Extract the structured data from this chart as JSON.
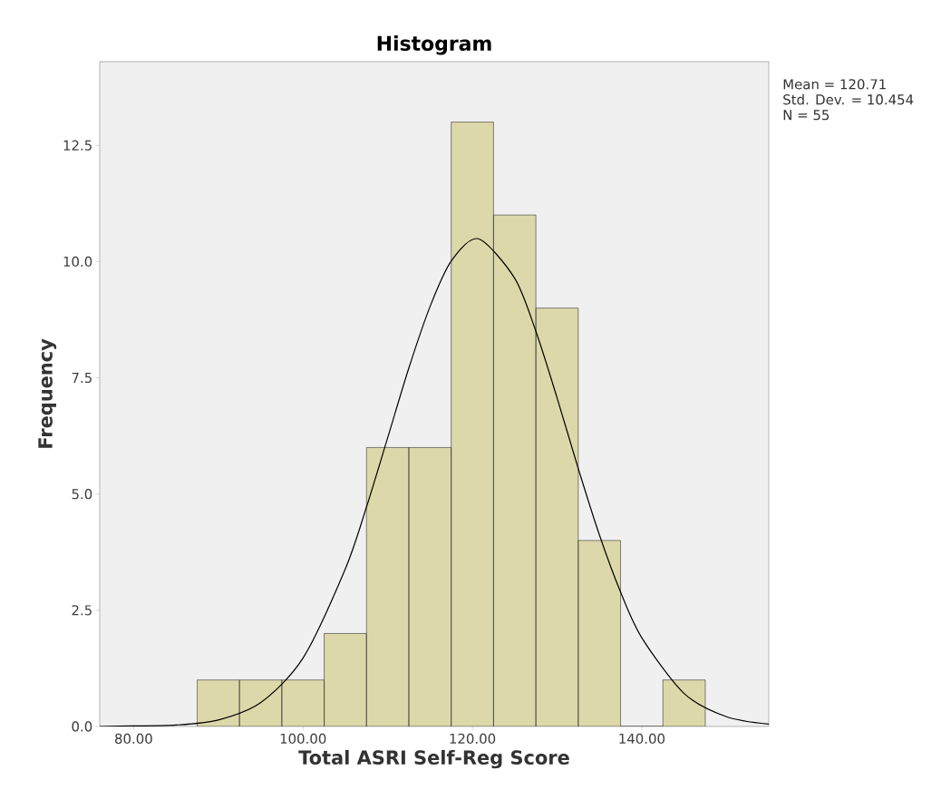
{
  "chart_data": {
    "type": "histogram",
    "title": "Histogram",
    "xlabel": "Total ASRI Self-Reg Score",
    "ylabel": "Frequency",
    "bins": [
      87.5,
      92.5,
      97.5,
      102.5,
      107.5,
      112.5,
      117.5,
      122.5,
      127.5,
      132.5,
      137.5,
      142.5,
      147.5
    ],
    "values": [
      1,
      1,
      1,
      2,
      6,
      6,
      13,
      11,
      9,
      4,
      0,
      1
    ],
    "color": "#ddd8a9",
    "series": [
      {
        "type": "line",
        "color": "#000000",
        "x": [
          76,
          80,
          85,
          90,
          95,
          100,
          105,
          107.5,
          110,
          112.5,
          115,
          117.5,
          120.7,
          125,
          127.5,
          130,
          132.5,
          135,
          137.5,
          140,
          145,
          150,
          155
        ],
        "values": [
          0,
          0.01,
          0.03,
          0.14,
          0.51,
          1.47,
          3.39,
          4.72,
          6.21,
          7.71,
          9.03,
          10.01,
          10.49,
          9.64,
          8.5,
          7.07,
          5.55,
          4.12,
          2.89,
          1.91,
          0.71,
          0.21,
          0.05
        ]
      }
    ],
    "xlim": [
      76,
      155
    ],
    "ylim": [
      0,
      14.3
    ],
    "xticks": [
      {
        "value": 80,
        "label": "80.00"
      },
      {
        "value": 100,
        "label": "100.00"
      },
      {
        "value": 120,
        "label": "120.00"
      },
      {
        "value": 140,
        "label": "140.00"
      }
    ],
    "yticks": [
      {
        "value": 0,
        "label": "0.0"
      },
      {
        "value": 2.5,
        "label": "2.5"
      },
      {
        "value": 5,
        "label": "5.0"
      },
      {
        "value": 7.5,
        "label": "7.5"
      },
      {
        "value": 10,
        "label": "10.0"
      },
      {
        "value": 12.5,
        "label": "12.5"
      }
    ],
    "annotations": [
      "Mean = 120.71",
      "Std. Dev. = 10.454",
      "N = 55"
    ]
  }
}
